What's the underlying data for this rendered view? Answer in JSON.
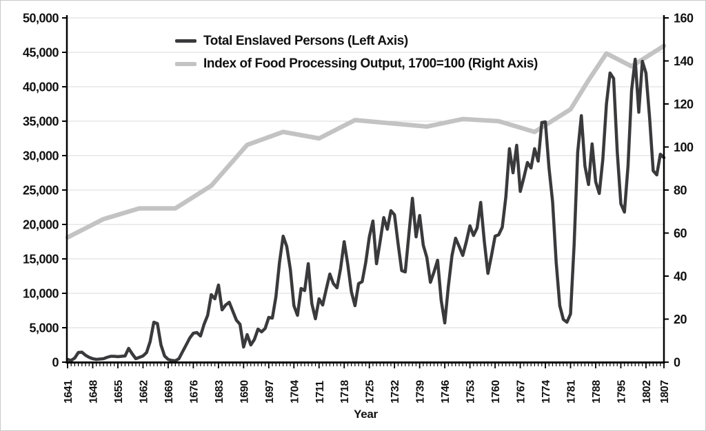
{
  "chart_data": {
    "type": "line",
    "title": "",
    "xlabel": "Year",
    "grid": true,
    "legend_position": "top-center-inside",
    "x_range": [
      1641,
      1807
    ],
    "x_tick_labels": [
      "1641",
      "1648",
      "1655",
      "1662",
      "1669",
      "1676",
      "1683",
      "1690",
      "1697",
      "1704",
      "1711",
      "1718",
      "1725",
      "1732",
      "1739",
      "1746",
      "1753",
      "1760",
      "1767",
      "1774",
      "1781",
      "1788",
      "1795",
      "1802",
      "1807"
    ],
    "left_axis": {
      "min": 0,
      "max": 50000,
      "tick_step": 5000,
      "tick_labels": [
        "0",
        "5,000",
        "10,000",
        "15,000",
        "20,000",
        "25,000",
        "30,000",
        "35,000",
        "40,000",
        "45,000",
        "50,000"
      ]
    },
    "right_axis": {
      "min": 0,
      "max": 160,
      "tick_step": 20,
      "tick_labels": [
        "0",
        "20",
        "40",
        "60",
        "80",
        "100",
        "120",
        "140",
        "160"
      ]
    },
    "series": [
      {
        "name": "Total Enslaved Persons (Left Axis)",
        "axis": "left",
        "color": "#3a3a3c",
        "stroke_width": 4.5,
        "x_start": 1641,
        "x_step": 1,
        "values": [
          400,
          250,
          600,
          1400,
          1450,
          1000,
          700,
          500,
          400,
          450,
          500,
          700,
          850,
          850,
          800,
          850,
          900,
          2000,
          1200,
          500,
          700,
          900,
          1400,
          3000,
          5800,
          5600,
          2500,
          900,
          400,
          250,
          200,
          500,
          1500,
          2500,
          3500,
          4200,
          4300,
          3800,
          5500,
          6800,
          9800,
          9200,
          11200,
          7600,
          8300,
          8700,
          7400,
          6100,
          5500,
          2200,
          4000,
          2500,
          3300,
          4800,
          4400,
          4900,
          6500,
          6400,
          9500,
          14500,
          18300,
          16800,
          13500,
          8200,
          6800,
          10700,
          10400,
          14300,
          8500,
          6300,
          9200,
          8300,
          10600,
          12800,
          11400,
          10800,
          13600,
          17500,
          14200,
          10200,
          8200,
          11400,
          11700,
          14500,
          18200,
          20500,
          14300,
          17500,
          21000,
          19300,
          22000,
          21400,
          17200,
          13300,
          13100,
          18500,
          23800,
          18200,
          21300,
          17000,
          15200,
          11600,
          13100,
          14800,
          9000,
          5700,
          11000,
          15500,
          18000,
          16800,
          15500,
          17500,
          19800,
          18400,
          19500,
          23200,
          17500,
          12900,
          15500,
          18300,
          18500,
          19600,
          24000,
          31000,
          27500,
          31500,
          24800,
          26800,
          29000,
          28200,
          31000,
          29200,
          34800,
          34900,
          28200,
          23300,
          14500,
          8200,
          6200,
          5800,
          7000,
          17000,
          30500,
          35800,
          28500,
          25800,
          31700,
          26200,
          24500,
          29500,
          37500,
          42000,
          41200,
          30500,
          23000,
          21800,
          28500,
          39500,
          44000,
          36300,
          43700,
          42000,
          35500,
          27800,
          27200,
          30200,
          29700
        ]
      },
      {
        "name": "Index of Food Processing Output, 1700=100 (Right Axis)",
        "axis": "right",
        "color": "#c3c3c3",
        "stroke_width": 6.5,
        "points": [
          [
            1641,
            58
          ],
          [
            1651,
            66.5
          ],
          [
            1661,
            71.5
          ],
          [
            1671,
            71.5
          ],
          [
            1681,
            82
          ],
          [
            1691,
            101
          ],
          [
            1701,
            107
          ],
          [
            1711,
            104
          ],
          [
            1721,
            112.5
          ],
          [
            1731,
            111
          ],
          [
            1741,
            109.5
          ],
          [
            1751,
            113
          ],
          [
            1761,
            112
          ],
          [
            1771,
            107
          ],
          [
            1781,
            117.5
          ],
          [
            1786,
            131
          ],
          [
            1791,
            143.5
          ],
          [
            1798,
            137.5
          ],
          [
            1807,
            147
          ]
        ]
      }
    ]
  },
  "colors": {
    "grid": "#d9d9d9",
    "axis": "#000000",
    "text": "#111111",
    "background": "#ffffff"
  }
}
